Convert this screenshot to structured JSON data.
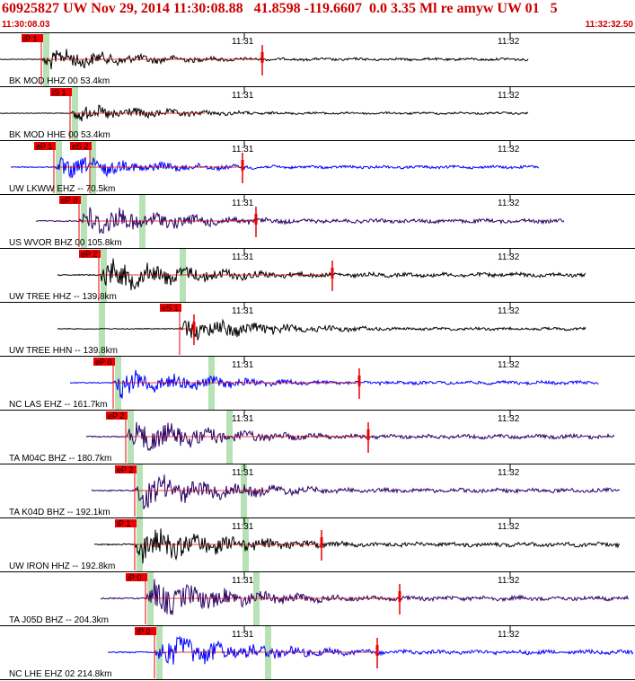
{
  "header": {
    "title": "60925827 UW Nov 29, 2014 11:30:08.88   41.8598 -119.6607  0.0 3.35 Ml re amyw UW 01   5",
    "start_time": "11:30:08.03",
    "end_time": "11:32:32.50"
  },
  "colors": {
    "accent": "#cc0000",
    "wave_black": "#000000",
    "wave_blue": "#0000ff",
    "wave_purple": "#2a0066",
    "theoretical_line": "#cc0000",
    "pick_box": "#ee0000",
    "window_band": "#b6e2b6"
  },
  "tick_labels": [
    "11:31",
    "11:32"
  ],
  "traces": [
    {
      "label": "BK MOD HHZ 00 53.4km",
      "color": "black",
      "pick": "iP 1",
      "amp": 0.55
    },
    {
      "label": "BK MOD HHE 00 53.4km",
      "color": "black",
      "pick": "iS 1",
      "amp": 0.45
    },
    {
      "label": "UW LKWW EHZ -- 70.5km",
      "color": "blue",
      "pick": "eP 1",
      "pick2": "eS 2",
      "amp": 0.6
    },
    {
      "label": "US WVOR BHZ 00 105.8km",
      "color": "purple",
      "pick": "eP 0",
      "amp": 0.8
    },
    {
      "label": "UW TREE HHZ -- 139.8km",
      "color": "black",
      "pick": "eP 2",
      "amp": 0.85
    },
    {
      "label": "UW TREE HHN -- 139.8km",
      "color": "black",
      "pick": "eS 1",
      "amp": 0.6
    },
    {
      "label": "NC LAS EHZ -- 161.7km",
      "color": "blue",
      "pick": "eP 0",
      "amp": 0.7
    },
    {
      "label": "TA M04C BHZ -- 180.7km",
      "color": "purple",
      "pick": "eP 2",
      "amp": 0.85
    },
    {
      "label": "TA K04D BHZ -- 192.1km",
      "color": "purple",
      "pick": "eP 2",
      "amp": 0.85
    },
    {
      "label": "UW IRON HHZ -- 192.8km",
      "color": "black",
      "pick": "iP 1",
      "amp": 0.9
    },
    {
      "label": "TA J05D BHZ -- 204.3km",
      "color": "purple",
      "pick": "iP 0",
      "amp": 0.9
    },
    {
      "label": "NC LHE EHZ 02 214.8km",
      "color": "blue",
      "pick": "iP 0",
      "amp": 0.9
    }
  ]
}
